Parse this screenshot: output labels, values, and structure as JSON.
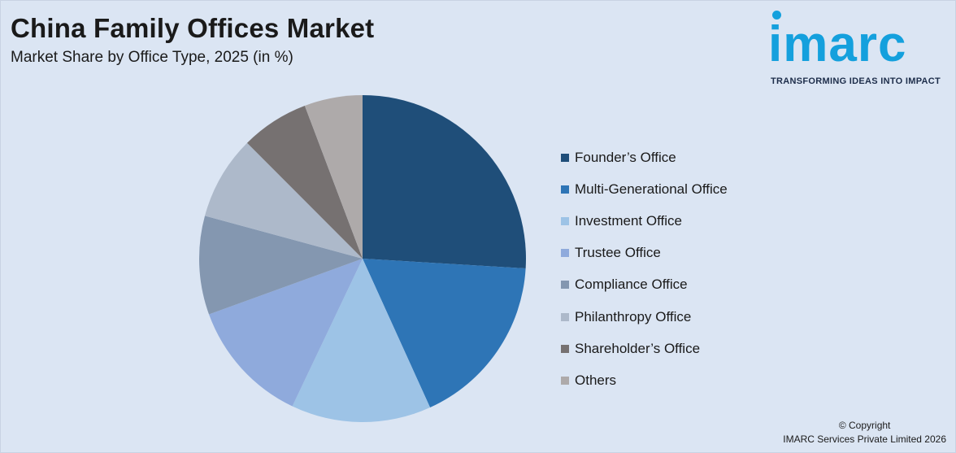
{
  "header": {
    "title": "China Family Offices Market",
    "subtitle": "Market Share by Office Type, 2025 (in %)"
  },
  "logo": {
    "wordmark": "imarc",
    "tagline": "TRANSFORMING IDEAS INTO IMPACT",
    "color": "#14a0dd"
  },
  "footer": {
    "copyright_line1": "© Copyright",
    "copyright_line2": "IMARC Services Private Limited 2026"
  },
  "chart_data": {
    "type": "pie",
    "title": "China Family Offices Market",
    "subtitle": "Market Share by Office Type, 2025 (in %)",
    "legend_position": "right",
    "slices": [
      {
        "label": "Founder’s Office",
        "value": 26.6,
        "color": "#1f4e79"
      },
      {
        "label": "Multi-Generational Office",
        "value": 17.7,
        "color": "#2e75b6"
      },
      {
        "label": "Investment Office",
        "value": 14.2,
        "color": "#9dc3e6"
      },
      {
        "label": "Trustee Office",
        "value": 12.7,
        "color": "#8faadc"
      },
      {
        "label": "Compliance Office",
        "value": 10.0,
        "color": "#8497b0"
      },
      {
        "label": "Philanthropy Office",
        "value": 8.5,
        "color": "#adb9ca"
      },
      {
        "label": "Shareholder’s Office",
        "value": 6.9,
        "color": "#767171"
      },
      {
        "label": "Others",
        "value": 5.9,
        "color": "#aeaaaa"
      }
    ]
  }
}
